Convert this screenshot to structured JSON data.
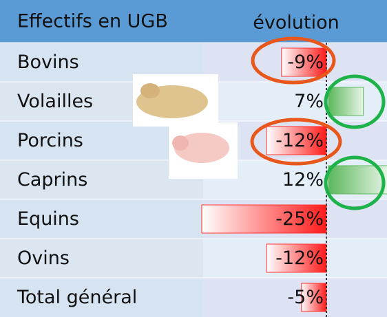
{
  "table": {
    "header": [
      "Effectifs en UGB",
      "évolution"
    ],
    "rows": [
      {
        "label": "Bovins",
        "value": -9,
        "value_label": "-9%"
      },
      {
        "label": "Volailles",
        "value": 7,
        "value_label": "7%"
      },
      {
        "label": "Porcins",
        "value": -12,
        "value_label": "-12%"
      },
      {
        "label": "Caprins",
        "value": 12,
        "value_label": "12%"
      },
      {
        "label": "Equins",
        "value": -25,
        "value_label": "-25%"
      },
      {
        "label": "Ovins",
        "value": -12,
        "value_label": "-12%"
      },
      {
        "label": "Total général",
        "value": -5,
        "value_label": "-5%"
      }
    ]
  }
}
